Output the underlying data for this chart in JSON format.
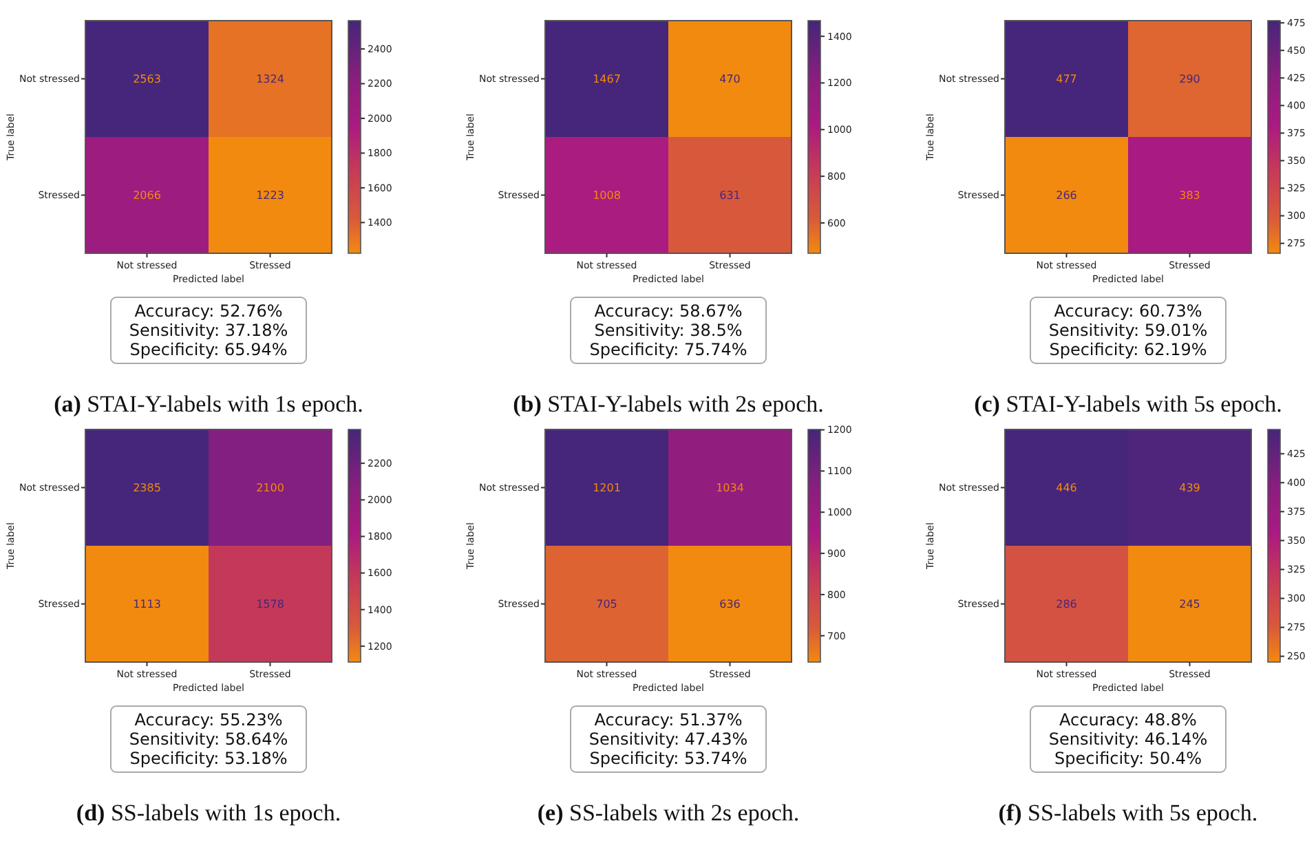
{
  "chart_data": [
    {
      "type": "heatmap",
      "title": "(a) STAI-Y-labels with 1s epoch.",
      "xlabel": "Predicted label",
      "ylabel": "True label",
      "categories": [
        "Not stressed",
        "Stressed"
      ],
      "y_categories": [
        "Not stressed",
        "Stressed"
      ],
      "cells": [
        [
          2563,
          1324
        ],
        [
          2066,
          1223
        ]
      ],
      "data_labels": true,
      "clim": [
        1223,
        2563
      ],
      "cticks": [
        1400,
        1600,
        1800,
        2000,
        2200,
        2400
      ],
      "annotations": [
        "Accuracy: 52.76%",
        "Sensitivity: 37.18%",
        "Specificity: 65.94%"
      ]
    },
    {
      "type": "heatmap",
      "title": "(b) STAI-Y-labels with 2s epoch.",
      "xlabel": "Predicted label",
      "ylabel": "True label",
      "categories": [
        "Not stressed",
        "Stressed"
      ],
      "y_categories": [
        "Not stressed",
        "Stressed"
      ],
      "cells": [
        [
          1467,
          470
        ],
        [
          1008,
          631
        ]
      ],
      "data_labels": true,
      "clim": [
        470,
        1467
      ],
      "cticks": [
        600,
        800,
        1000,
        1200,
        1400
      ],
      "annotations": [
        "Accuracy: 58.67%",
        "Sensitivity: 38.5%",
        "Specificity: 75.74%"
      ]
    },
    {
      "type": "heatmap",
      "title": "(c) STAI-Y-labels with 5s epoch.",
      "xlabel": "Predicted label",
      "ylabel": "True label",
      "categories": [
        "Not stressed",
        "Stressed"
      ],
      "y_categories": [
        "Not stressed",
        "Stressed"
      ],
      "cells": [
        [
          477,
          290
        ],
        [
          266,
          383
        ]
      ],
      "data_labels": true,
      "clim": [
        266,
        477
      ],
      "cticks": [
        275,
        300,
        325,
        350,
        375,
        400,
        425,
        450,
        475
      ],
      "annotations": [
        "Accuracy: 60.73%",
        "Sensitivity: 59.01%",
        "Specificity: 62.19%"
      ]
    },
    {
      "type": "heatmap",
      "title": "(d) SS-labels with 1s epoch.",
      "xlabel": "Predicted label",
      "ylabel": "True label",
      "categories": [
        "Not stressed",
        "Stressed"
      ],
      "y_categories": [
        "Not stressed",
        "Stressed"
      ],
      "cells": [
        [
          2385,
          2100
        ],
        [
          1113,
          1578
        ]
      ],
      "data_labels": true,
      "clim": [
        1113,
        2385
      ],
      "cticks": [
        1200,
        1400,
        1600,
        1800,
        2000,
        2200
      ],
      "annotations": [
        "Accuracy: 55.23%",
        "Sensitivity: 58.64%",
        "Specificity: 53.18%"
      ]
    },
    {
      "type": "heatmap",
      "title": "(e) SS-labels with 2s epoch.",
      "xlabel": "Predicted label",
      "ylabel": "True label",
      "categories": [
        "Not stressed",
        "Stressed"
      ],
      "y_categories": [
        "Not stressed",
        "Stressed"
      ],
      "cells": [
        [
          1201,
          1034
        ],
        [
          705,
          636
        ]
      ],
      "data_labels": true,
      "clim": [
        636,
        1201
      ],
      "cticks": [
        700,
        800,
        900,
        1000,
        1100,
        1200
      ],
      "annotations": [
        "Accuracy: 51.37%",
        "Sensitivity: 47.43%",
        "Specificity: 53.74%"
      ]
    },
    {
      "type": "heatmap",
      "title": "(f) SS-labels with 5s epoch.",
      "xlabel": "Predicted label",
      "ylabel": "True label",
      "categories": [
        "Not stressed",
        "Stressed"
      ],
      "y_categories": [
        "Not stressed",
        "Stressed"
      ],
      "cells": [
        [
          446,
          439
        ],
        [
          286,
          245
        ]
      ],
      "data_labels": true,
      "clim": [
        245,
        446
      ],
      "cticks": [
        250,
        275,
        300,
        325,
        350,
        375,
        400,
        425
      ],
      "annotations": [
        "Accuracy: 48.8%",
        "Sensitivity: 46.14%",
        "Specificity: 50.4%"
      ]
    }
  ]
}
